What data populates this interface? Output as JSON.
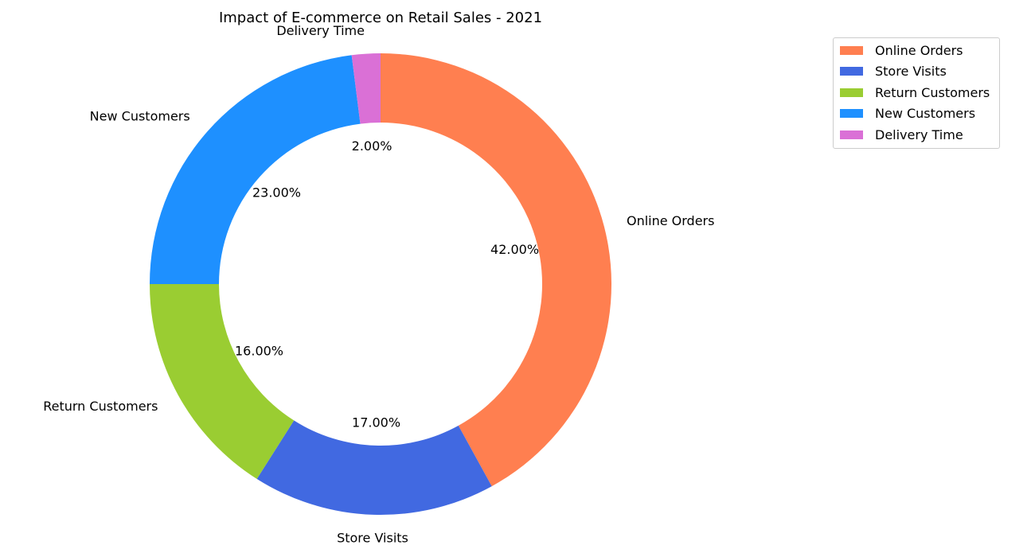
{
  "chart_data": {
    "type": "pie",
    "title": "Impact of E-commerce on Retail Sales - 2021",
    "donut": true,
    "categories": [
      "Online Orders",
      "Store Visits",
      "Return Customers",
      "New Customers",
      "Delivery Time"
    ],
    "values": [
      42,
      17,
      16,
      23,
      2
    ],
    "value_labels": [
      "42.00%",
      "17.00%",
      "16.00%",
      "23.00%",
      "2.00%"
    ],
    "colors": [
      "#FF7F50",
      "#4169E1",
      "#9ACD32",
      "#1E90FF",
      "#DA70D6"
    ],
    "start_angle_degrees": 90,
    "direction": "clockwise",
    "legend_position": "top-right"
  }
}
